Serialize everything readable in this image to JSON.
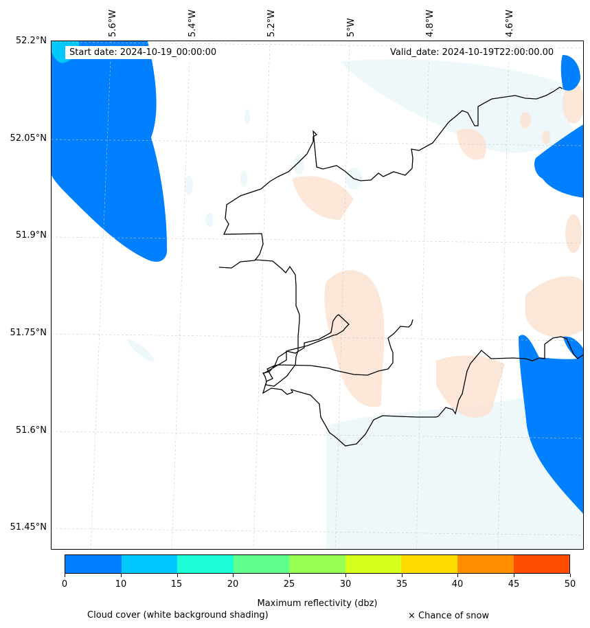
{
  "map": {
    "start_date": "Start date: 2024-10-19_00:00:00",
    "valid_date": "Valid_date: 2024-10-19T22:00:00.00",
    "lat_labels": [
      "52.2°N",
      "52.05°N",
      "51.9°N",
      "51.75°N",
      "51.6°N",
      "51.45°N"
    ],
    "lon_labels": [
      "5.6°W",
      "5.4°W",
      "5.2°W",
      "5°W",
      "4.8°W",
      "4.6°W"
    ],
    "region_colors": {
      "reflectivity_low": "#0080ff",
      "coastline": "#000000",
      "warm_tint": "#fbe3d2",
      "cool_tint": "#e9f4f8"
    }
  },
  "colorbar": {
    "ticks": [
      "0",
      "10",
      "15",
      "20",
      "25",
      "30",
      "35",
      "40",
      "45",
      "50"
    ],
    "colors": [
      "#0080ff",
      "#00c8ff",
      "#1effd8",
      "#60ff8e",
      "#96ff54",
      "#d6ff1e",
      "#ffdc00",
      "#ff8e00",
      "#ff4e00"
    ],
    "label": "Maximum reflectivity (dbz)"
  },
  "legend": {
    "cloud_note": "Cloud cover (white background shading)",
    "snow_note": "× Chance of snow"
  }
}
